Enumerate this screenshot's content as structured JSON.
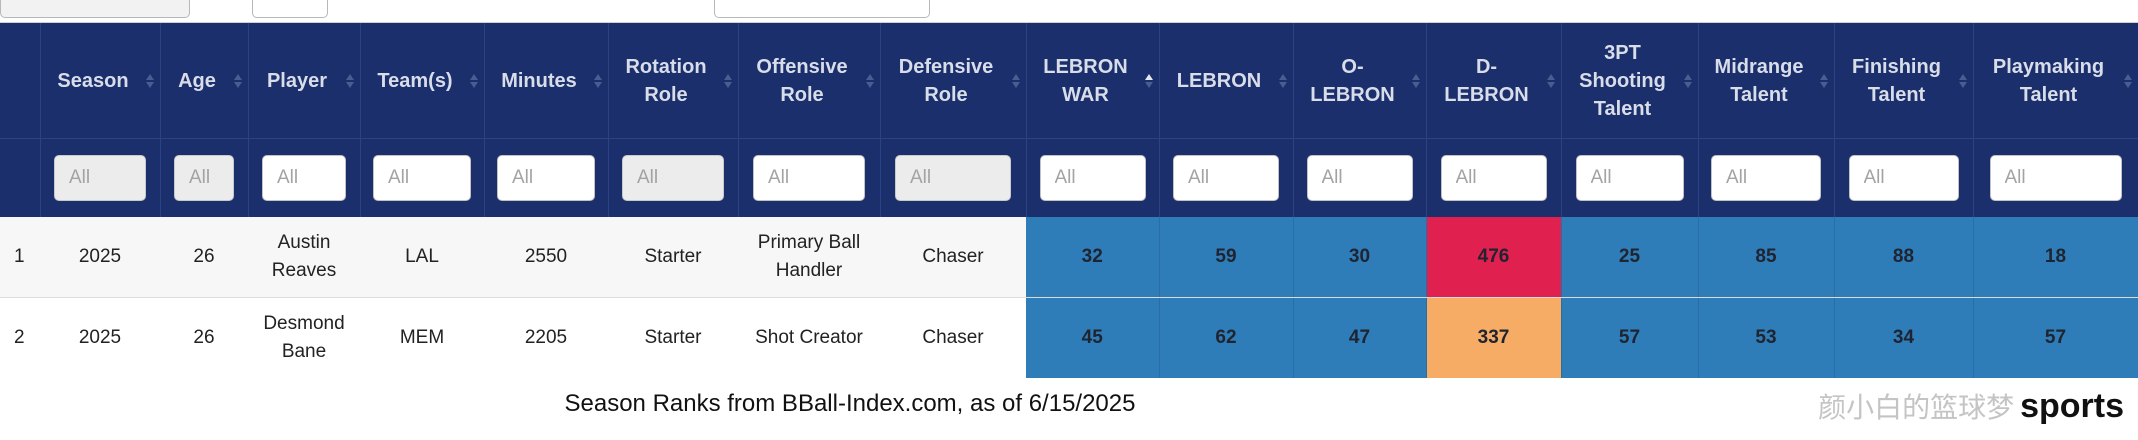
{
  "header": {
    "columns": [
      {
        "label": "",
        "sort": "none"
      },
      {
        "label": "Season",
        "sort": "none"
      },
      {
        "label": "Age",
        "sort": "none"
      },
      {
        "label": "Player",
        "sort": "none"
      },
      {
        "label": "Team(s)",
        "sort": "none"
      },
      {
        "label": "Minutes",
        "sort": "none"
      },
      {
        "label": "Rotation Role",
        "sort": "none"
      },
      {
        "label": "Offensive Role",
        "sort": "none"
      },
      {
        "label": "Defensive Role",
        "sort": "none"
      },
      {
        "label": "LEBRON WAR",
        "sort": "asc"
      },
      {
        "label": "LEBRON",
        "sort": "none"
      },
      {
        "label": "O-LEBRON",
        "sort": "none"
      },
      {
        "label": "D-LEBRON",
        "sort": "none"
      },
      {
        "label": "3PT Shooting Talent",
        "sort": "none"
      },
      {
        "label": "Midrange Talent",
        "sort": "none"
      },
      {
        "label": "Finishing Talent",
        "sort": "none"
      },
      {
        "label": "Playmaking Talent",
        "sort": "none"
      }
    ]
  },
  "filters": {
    "placeholder": "All",
    "disabled_columns": [
      "Season",
      "Age",
      "Rotation Role",
      "Defensive Role"
    ]
  },
  "rows": [
    {
      "rank": "1",
      "season": "2025",
      "age": "26",
      "player": "Austin Reaves",
      "team": "LAL",
      "minutes": "2550",
      "rotation_role": "Starter",
      "offensive_role": "Primary Ball Handler",
      "defensive_role": "Chaser",
      "lebron_war": "32",
      "lebron": "59",
      "o_lebron": "30",
      "d_lebron": "476",
      "three_pt": "25",
      "midrange": "85",
      "finishing": "88",
      "playmaking": "18"
    },
    {
      "rank": "2",
      "season": "2025",
      "age": "26",
      "player": "Desmond Bane",
      "team": "MEM",
      "minutes": "2205",
      "rotation_role": "Starter",
      "offensive_role": "Shot Creator",
      "defensive_role": "Chaser",
      "lebron_war": "45",
      "lebron": "62",
      "o_lebron": "47",
      "d_lebron": "337",
      "three_pt": "57",
      "midrange": "53",
      "finishing": "34",
      "playmaking": "57"
    }
  ],
  "caption": "Season Ranks from BBall-Index.com, as of 6/15/2025",
  "watermark": {
    "cn": "颜小白的篮球梦",
    "brand": "sports"
  },
  "colors": {
    "header_bg": "#1a2f6b",
    "stat_cell": "#2e7cb8",
    "hot_cell": "#e0204e",
    "warm_cell": "#f7ac66"
  },
  "icons": {
    "sort": "sort-arrows-icon"
  }
}
